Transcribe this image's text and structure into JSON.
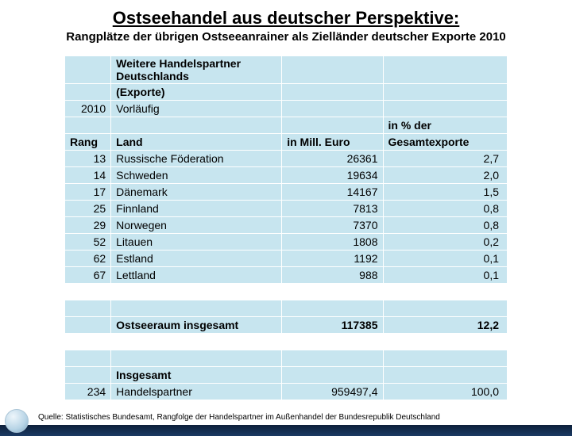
{
  "title": "Ostseehandel aus deutscher Perspektive:",
  "subtitle": "Rangplätze der übrigen Ostseeanrainer als Zielländer deutscher Exporte 2010",
  "tableHeader1": "Weitere Handelspartner Deutschlands",
  "tableHeader2": "(Exporte)",
  "tableYearLabel": "2010",
  "tableYearNote": "Vorläufig",
  "colRank": "Rang",
  "colLand": "Land",
  "colMill": "in Mill. Euro",
  "colPct1": "in % der",
  "colPct2": "Gesamtexporte",
  "rows": [
    {
      "rank": "13",
      "land": "Russische Föderation",
      "mill": "26361",
      "pct": "2,7"
    },
    {
      "rank": "14",
      "land": "Schweden",
      "mill": "19634",
      "pct": "2,0"
    },
    {
      "rank": "17",
      "land": "Dänemark",
      "mill": "14167",
      "pct": "1,5"
    },
    {
      "rank": "25",
      "land": "Finnland",
      "mill": "7813",
      "pct": "0,8"
    },
    {
      "rank": "29",
      "land": "Norwegen",
      "mill": "7370",
      "pct": "0,8"
    },
    {
      "rank": "52",
      "land": "Litauen",
      "mill": "1808",
      "pct": "0,2"
    },
    {
      "rank": "62",
      "land": "Estland",
      "mill": "1192",
      "pct": "0,1"
    },
    {
      "rank": "67",
      "land": "Lettland",
      "mill": "988",
      "pct": "0,1"
    }
  ],
  "subtotalLabel": "Ostseeraum insgesamt",
  "subtotalMill": "117385",
  "subtotalPct": "12,2",
  "totalLabel": "Insgesamt",
  "totalRank": "234",
  "totalLand": "Handelspartner",
  "totalMill": "959497,4",
  "totalPct": "100,0",
  "source": "Quelle: Statistisches Bundesamt, Rangfolge der Handelspartner im Außenhandel der Bundesrepublik Deutschland",
  "colors": {
    "cellBg": "#c7e5ef",
    "cellBorder": "#ffffff",
    "footerGradTop": "#0d1f3a",
    "footerGradBottom": "#1a3a63"
  }
}
